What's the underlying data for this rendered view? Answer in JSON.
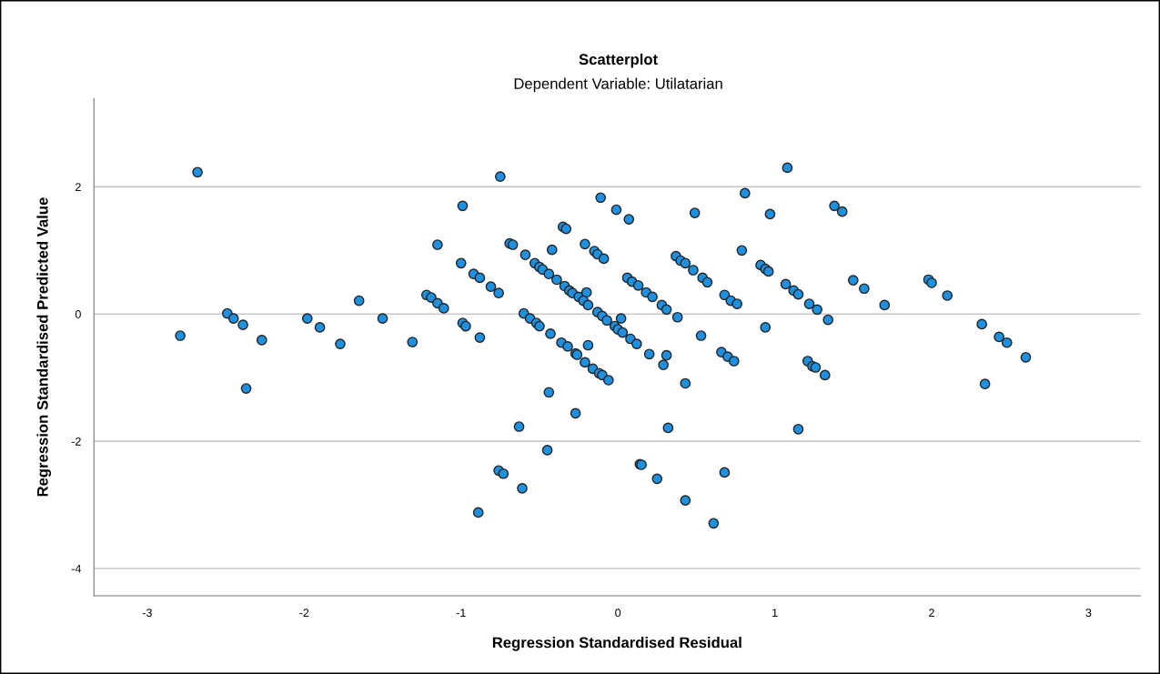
{
  "chart_data": {
    "type": "scatter",
    "title": "Scatterplot",
    "subtitle": "Dependent Variable: Utilatarian",
    "xlabel": "Regression Standardised Residual",
    "ylabel": "Regression Standardised Predicted Value",
    "xlim": [
      -3.34,
      3.33
    ],
    "ylim": [
      -4.43,
      3.39
    ],
    "xticks": [
      -3,
      -2,
      -1,
      0,
      1,
      2,
      3
    ],
    "yticks": [
      -4,
      -2,
      0,
      2
    ],
    "grid": "y",
    "marker": "circle",
    "series": [
      {
        "color": "#1e90e0",
        "x": [
          -2.68,
          -2.79,
          -2.49,
          -2.45,
          -2.39,
          -2.27,
          -2.37,
          -1.98,
          -1.9,
          -1.77,
          -1.65,
          -1.5,
          -1.31,
          -1.15,
          -1.22,
          -1.19,
          -1.15,
          -1.11,
          -0.75,
          1.08,
          -0.99,
          -0.11,
          -0.01,
          0.07,
          0.81,
          0.49,
          0.97,
          -0.35,
          -0.33,
          -0.69,
          -0.67,
          -0.59,
          -0.42,
          -0.21,
          -0.15,
          -0.13,
          -0.09,
          0.79,
          -1.0,
          -0.92,
          -0.88,
          -0.81,
          -0.76,
          -0.53,
          -0.5,
          -0.48,
          -0.44,
          -0.39,
          -0.34,
          -0.31,
          -0.29,
          -0.25,
          -0.2,
          -0.22,
          -0.19,
          -0.13,
          -0.1,
          -0.07,
          0.02,
          -0.02,
          0.0,
          0.03,
          0.08,
          0.12,
          0.2,
          0.31,
          0.29,
          0.43,
          0.06,
          0.09,
          0.13,
          0.18,
          0.22,
          0.28,
          0.31,
          0.38,
          0.37,
          0.4,
          0.43,
          0.48,
          0.54,
          0.57,
          0.68,
          0.72,
          0.76,
          0.53,
          0.66,
          0.7,
          0.74,
          0.91,
          0.94,
          0.96,
          0.94,
          1.07,
          1.12,
          1.15,
          -0.99,
          -0.97,
          -0.88,
          -0.6,
          -0.56,
          -0.52,
          -0.5,
          -0.43,
          -0.36,
          -0.32,
          -0.27,
          -0.26,
          -0.21,
          -0.19,
          -0.16,
          -0.12,
          -0.1,
          -0.06,
          -0.44,
          -0.27,
          -0.63,
          0.32,
          1.15,
          -0.45,
          0.14,
          0.15,
          -0.76,
          -0.73,
          0.25,
          0.68,
          -0.61,
          0.43,
          -0.89,
          0.61,
          1.38,
          1.43,
          1.22,
          1.27,
          1.34,
          1.5,
          1.57,
          1.7,
          1.98,
          2.0,
          2.1,
          2.32,
          2.43,
          2.48,
          2.6,
          2.34,
          1.21,
          1.24,
          1.26,
          1.32
        ],
        "values": [
          2.23,
          -0.34,
          0.01,
          -0.07,
          -0.17,
          -0.41,
          -1.17,
          -0.07,
          -0.21,
          -0.47,
          0.21,
          -0.07,
          -0.44,
          1.09,
          0.3,
          0.26,
          0.17,
          0.09,
          2.16,
          2.3,
          1.7,
          1.83,
          1.64,
          1.49,
          1.9,
          1.59,
          1.57,
          1.37,
          1.34,
          1.11,
          1.09,
          0.93,
          1.01,
          1.1,
          0.99,
          0.94,
          0.87,
          1.0,
          0.8,
          0.63,
          0.57,
          0.43,
          0.33,
          0.8,
          0.74,
          0.7,
          0.63,
          0.54,
          0.44,
          0.37,
          0.33,
          0.27,
          0.34,
          0.21,
          0.14,
          0.03,
          -0.03,
          -0.1,
          -0.07,
          -0.19,
          -0.24,
          -0.29,
          -0.39,
          -0.47,
          -0.63,
          -0.65,
          -0.8,
          -1.09,
          0.57,
          0.51,
          0.45,
          0.34,
          0.27,
          0.14,
          0.07,
          -0.05,
          0.91,
          0.84,
          0.8,
          0.69,
          0.57,
          0.5,
          0.3,
          0.21,
          0.16,
          -0.34,
          -0.6,
          -0.67,
          -0.74,
          0.77,
          0.71,
          0.67,
          -0.21,
          0.47,
          0.37,
          0.31,
          -0.14,
          -0.19,
          -0.37,
          0.01,
          -0.07,
          -0.14,
          -0.19,
          -0.31,
          -0.45,
          -0.51,
          -0.62,
          -0.64,
          -0.76,
          -0.49,
          -0.86,
          -0.93,
          -0.96,
          -1.04,
          -1.23,
          -1.56,
          -1.77,
          -1.79,
          -1.81,
          -2.14,
          -2.36,
          -2.37,
          -2.46,
          -2.51,
          -2.59,
          -2.49,
          -2.74,
          -2.93,
          -3.12,
          -3.29,
          1.7,
          1.61,
          0.16,
          0.07,
          -0.09,
          0.53,
          0.4,
          0.14,
          0.54,
          0.49,
          0.29,
          -0.16,
          -0.36,
          -0.45,
          -0.68,
          -1.1,
          -0.74,
          -0.82,
          -0.84,
          -0.96
        ]
      }
    ]
  }
}
